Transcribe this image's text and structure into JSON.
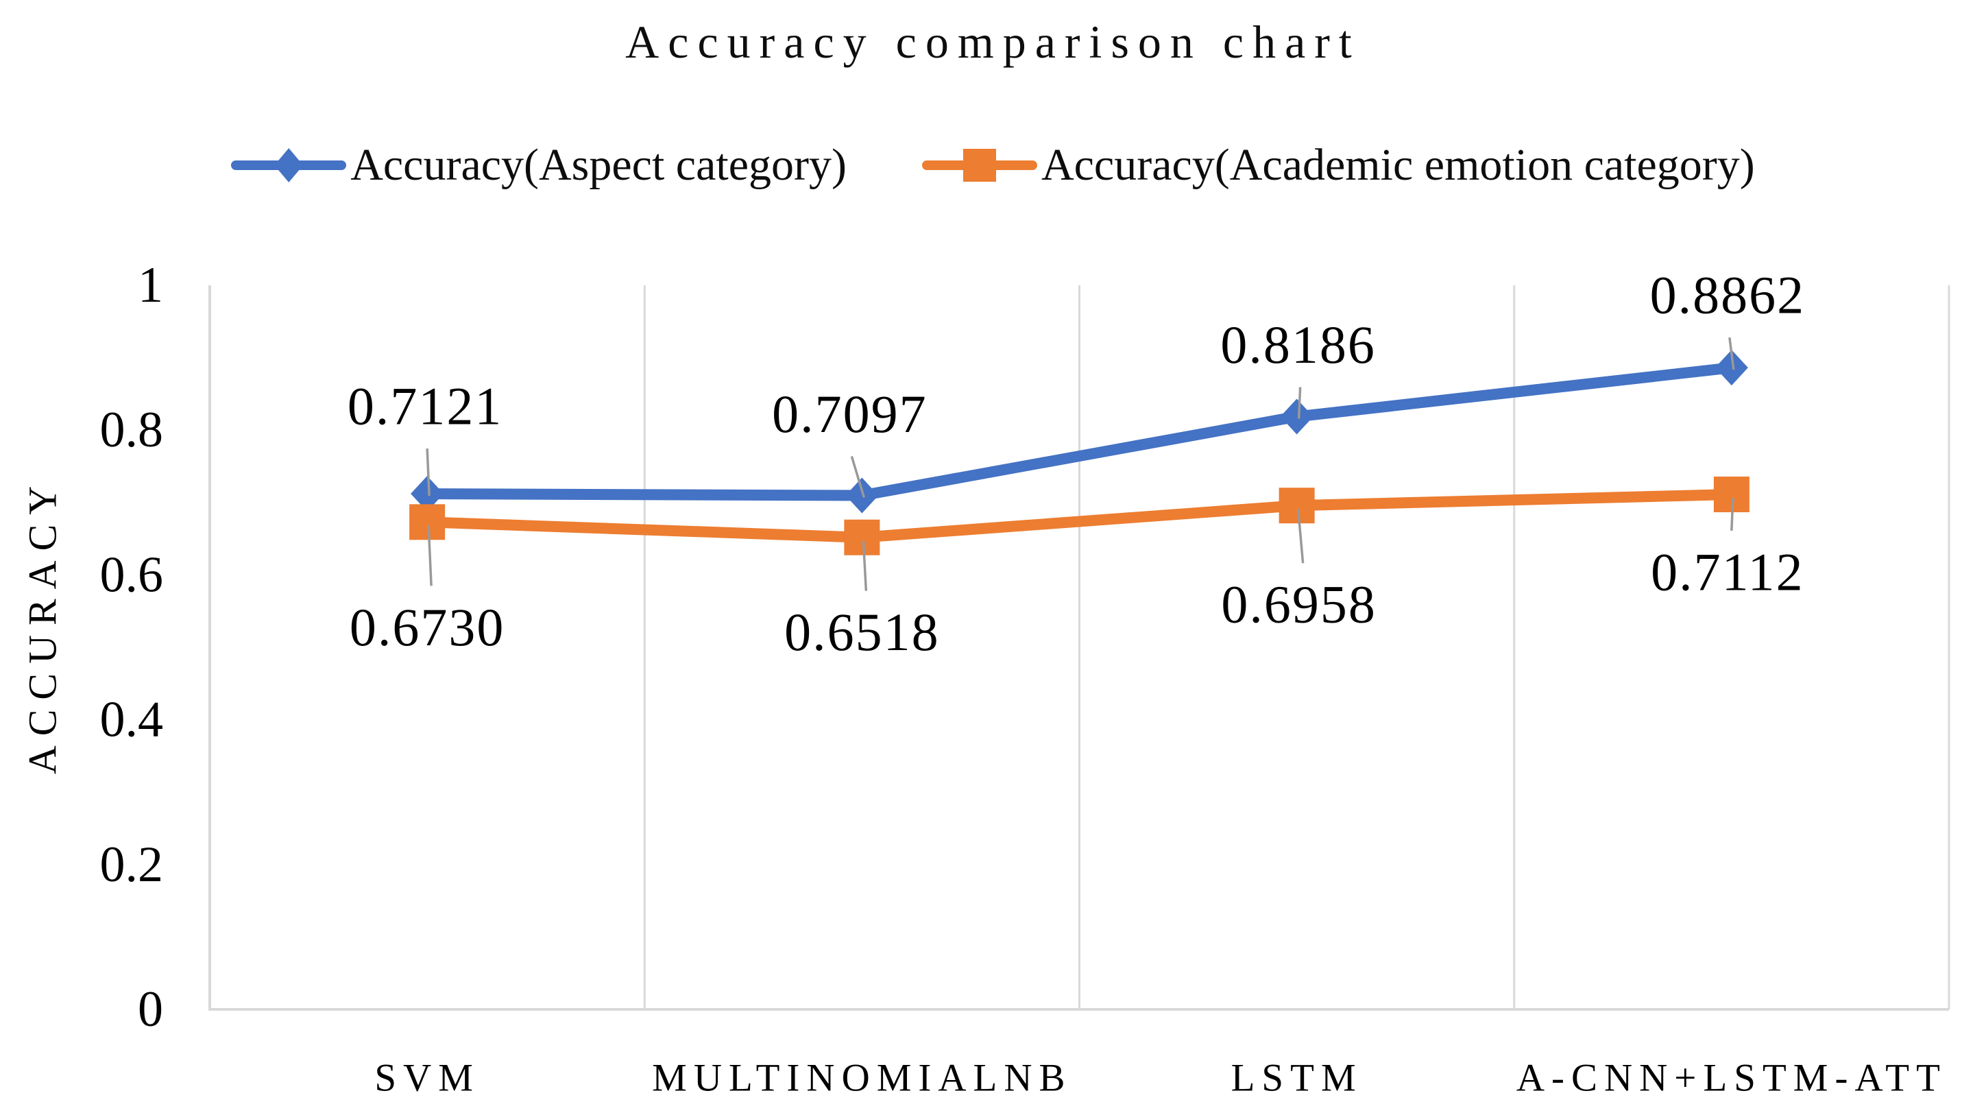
{
  "chart_data": {
    "type": "line",
    "title": "Accuracy comparison chart",
    "categories": [
      "SVM",
      "MULTINOMIALNB",
      "LSTM",
      "A-CNN+LSTM-ATT"
    ],
    "series": [
      {
        "name": "Accuracy(Aspect category)",
        "color": "#4472C4",
        "marker": "diamond",
        "values": [
          0.7121,
          0.7097,
          0.8186,
          0.8862
        ],
        "labels": [
          "0.7121",
          "0.7097",
          "0.8186",
          "0.8862"
        ],
        "label_position": "above"
      },
      {
        "name": "Accuracy(Academic emotion category)",
        "color": "#ED7D31",
        "marker": "square",
        "values": [
          0.673,
          0.6518,
          0.6958,
          0.7112
        ],
        "labels": [
          "0.6730",
          "0.6518",
          "0.6958",
          "0.7112"
        ],
        "label_position": "below"
      }
    ],
    "xlabel": "",
    "ylabel": "ACCURACY",
    "ylim": [
      0,
      1
    ],
    "yticks": [
      0,
      0.2,
      0.4,
      0.6,
      0.8,
      1
    ],
    "ytick_labels": [
      "0",
      "0.2",
      "0.4",
      "0.6",
      "0.8",
      "1"
    ],
    "grid": "vertical-only",
    "legend_position": "top",
    "colors": {
      "gridline": "#D9D9D9",
      "axis_line": "#D9D9D9",
      "leader_line": "#999999",
      "text": "#000000",
      "background": "#FFFFFF"
    }
  }
}
